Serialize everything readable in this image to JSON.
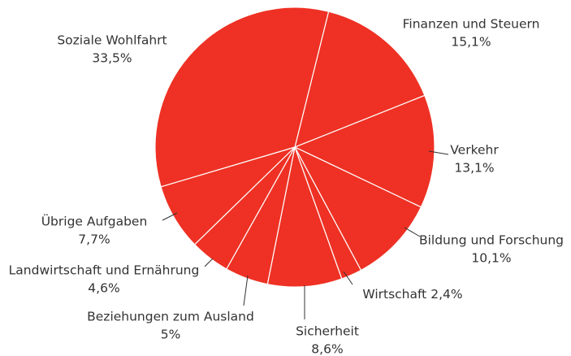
{
  "chart_data": {
    "type": "pie",
    "color": "#ee3124",
    "categories": [
      "Finanzen und Steuern",
      "Verkehr",
      "Bildung und Forschung",
      "Wirtschaft",
      "Sicherheit",
      "Beziehungen zum Ausland",
      "Landwirtschaft und Ernährung",
      "Übrige Aufgaben",
      "Soziale Wohlfahrt"
    ],
    "values": [
      15.1,
      13.1,
      10.1,
      2.4,
      8.6,
      5,
      4.6,
      7.7,
      33.5
    ],
    "value_labels": [
      "15,1%",
      "13,1%",
      "10,1%",
      "2,4%",
      "8,6%",
      "5%",
      "4,6%",
      "7,7%",
      "33,5%"
    ]
  }
}
